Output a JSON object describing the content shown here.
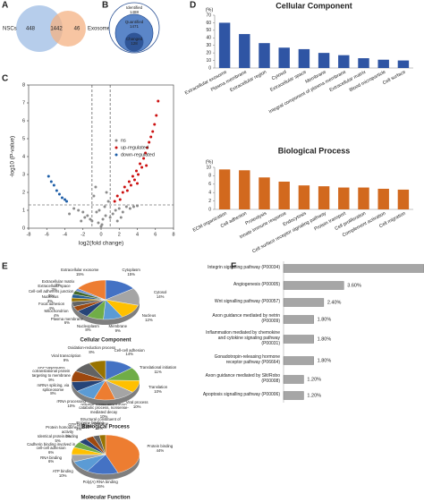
{
  "chart_data": [
    {
      "type": "venn",
      "panel": "A",
      "sets": [
        "NSCs",
        "Exosomes"
      ],
      "values": [
        448,
        1442,
        46
      ],
      "colors": [
        "#a9c4e8",
        "#f4b183"
      ]
    },
    {
      "type": "nested",
      "panel": "B",
      "categories": [
        "Identified",
        "Quantified",
        "Changed"
      ],
      "values": [
        1488,
        1471,
        128
      ],
      "colors": [
        "#ffffff",
        "#5b86c8",
        "#2f5597"
      ]
    },
    {
      "type": "scatter",
      "panel": "C",
      "x_label": "log2(fold change)",
      "y_label": "-log10 (P-value)",
      "xlim": [
        -8,
        8
      ],
      "xticks": [
        -8,
        -6,
        -4,
        -2,
        0,
        2,
        4,
        6,
        8
      ],
      "ylim": [
        0,
        8
      ],
      "yticks": [
        0,
        1,
        2,
        3,
        4,
        5,
        6,
        7,
        8
      ],
      "vlines": [
        -1,
        1
      ],
      "hline": 1.3,
      "series": [
        {
          "name": "ns",
          "color": "#8c8c8c",
          "x": [
            -3,
            -2.5,
            -2,
            -1.5,
            -1.2,
            -1,
            -0.8,
            -0.5,
            -0.3,
            0,
            0.2,
            0.4,
            0.6,
            0.8,
            1,
            1.3,
            1.6,
            2,
            2.4,
            2.8,
            3.2,
            -0.6,
            0.5,
            -1.8,
            1.8,
            0.1,
            -0.2,
            2.2,
            -2.2,
            3.6,
            -3.5,
            4
          ],
          "values": [
            1.1,
            1.0,
            0.9,
            0.7,
            0.5,
            0.4,
            1.8,
            0.9,
            0.3,
            0.1,
            0.5,
            1.2,
            2.0,
            1.5,
            0.6,
            0.8,
            1.0,
            1.1,
            0.9,
            1.2,
            1.1,
            2.3,
            0.7,
            0.6,
            0.4,
            0.2,
            1.0,
            0.6,
            0.4,
            1.2,
            0.8,
            1.25
          ]
        },
        {
          "name": "up-regulated",
          "color": "#cc1010",
          "x": [
            1.5,
            1.8,
            2.1,
            2.4,
            2.6,
            2.9,
            3.1,
            3.3,
            3.5,
            3.7,
            3.9,
            4.1,
            4.3,
            4.5,
            4.7,
            4.9,
            5.1,
            5.3,
            5.5,
            5.7,
            5.9,
            6.1,
            6.3,
            4.0,
            5.0
          ],
          "values": [
            1.5,
            1.8,
            1.6,
            2.0,
            2.3,
            2.1,
            2.6,
            2.4,
            2.9,
            2.7,
            3.2,
            3.0,
            3.6,
            3.4,
            3.9,
            4.2,
            4.5,
            4.8,
            5.1,
            5.4,
            5.8,
            6.3,
            7.1,
            2.5,
            3.5
          ]
        },
        {
          "name": "down-regulated",
          "color": "#1f5fa8",
          "x": [
            -5.8,
            -5.5,
            -5.2,
            -4.9,
            -4.6,
            -4.3,
            -4.0,
            -3.8
          ],
          "values": [
            2.9,
            2.6,
            2.4,
            2.1,
            1.9,
            1.7,
            1.6,
            1.5
          ]
        }
      ]
    },
    {
      "type": "bar",
      "panel": "D",
      "title": "Cellular Component",
      "y_label": "(%)",
      "color": "#2f55a4",
      "categories": [
        "Extracellular exosome",
        "Plasma membrane",
        "Extracellular region",
        "Cytosol",
        "Extracellular space",
        "Membrane",
        "Integral component of plasma membrane",
        "Extracellular matrix",
        "Blood microparticle",
        "Cell surface"
      ],
      "values": [
        60,
        45,
        33,
        27,
        25,
        20,
        17,
        13,
        11,
        10
      ],
      "ylim": [
        0,
        70
      ],
      "yticks": [
        0,
        10,
        20,
        30,
        40,
        50,
        60,
        70
      ]
    },
    {
      "type": "bar",
      "title": "Biological Process",
      "y_label": "(%)",
      "color": "#d2691e",
      "categories": [
        "ECM organization",
        "Cell adhesion",
        "Proteolysis",
        "Innate immune response",
        "Endocytosis",
        "Cell surface receptor signaling pathway",
        "Protein transport",
        "Cell proliferation",
        "Complement activation",
        "Cell migration"
      ],
      "values": [
        9.5,
        9.3,
        7.6,
        6.6,
        5.7,
        5.5,
        5.2,
        5.2,
        4.9,
        4.7
      ],
      "ylim": [
        0,
        10
      ],
      "yticks": [
        0,
        2,
        4,
        6,
        8,
        10
      ]
    },
    {
      "type": "pie",
      "panel": "E",
      "title": "Cellular Component",
      "categories": [
        "Cytoplasm",
        "Cytosol",
        "Nucleus",
        "Membrane",
        "Nucleoplasm",
        "Plasma membrane",
        "Mitochondrion",
        "Focal adhesion",
        "Nucleolus",
        "Cell-cell adherens junction",
        "Extracellular space",
        "Extracellular matrix",
        "Extracellular exosome"
      ],
      "values": [
        15,
        14,
        12,
        9,
        8,
        6,
        4,
        4,
        3,
        3,
        3,
        2,
        15
      ],
      "value_labels": [
        "15%",
        "14%",
        "12%",
        "9%",
        "8%",
        "6%",
        "4%",
        "4%",
        "3%",
        "3%",
        "3%",
        "2%",
        "15%"
      ],
      "colors": [
        "#4472c4",
        "#a5a5a5",
        "#ffc000",
        "#5b9bd5",
        "#70ad47",
        "#264478",
        "#9e480e",
        "#636363",
        "#997300",
        "#255e91",
        "#43682b",
        "#698ed0",
        "#ed7d31"
      ]
    },
    {
      "type": "pie",
      "title": "Biological Process",
      "categories": [
        "Cell-cell adhesion",
        "Translational initiation",
        "Translation",
        "Viral process",
        "Nuclear-transcribed mRNA catabolic process, nonsense-mediated decay",
        "rRNA processing",
        "mRNA splicing, via spliceosome",
        "SRP-dependent cotranslational protein targeting to membrane",
        "Viral transcription",
        "Oxidation-reduction process"
      ],
      "values": [
        14,
        11,
        10,
        10,
        10,
        10,
        8,
        9,
        9,
        8
      ],
      "value_labels": [
        "14%",
        "11%",
        "10%",
        "10%",
        "10%",
        "10%",
        "8%",
        "9%",
        "9%",
        "8%"
      ],
      "colors": [
        "#4472c4",
        "#70ad47",
        "#ffc000",
        "#a5a5a5",
        "#ed7d31",
        "#5b9bd5",
        "#264478",
        "#9e480e",
        "#636363",
        "#997300"
      ]
    },
    {
      "type": "pie",
      "title": "Molecular Function",
      "categories": [
        "Protein binding",
        "Poly(A) RNA binding",
        "ATP binding",
        "RNA binding",
        "Cadherin binding involved in cell-cell adhesion",
        "Identical protein binding",
        "Protein homodimerization activity",
        "GTP binding",
        "Enzyme binding",
        "Structural constituent of ribosome"
      ],
      "values": [
        44,
        15,
        10,
        6,
        6,
        5,
        4,
        4,
        3,
        3
      ],
      "value_labels": [
        "44%",
        "15%",
        "10%",
        "6%",
        "6%",
        "5%",
        "4%",
        "4%",
        "3%",
        "3%"
      ],
      "colors": [
        "#ed7d31",
        "#4472c4",
        "#5b9bd5",
        "#a5a5a5",
        "#ffc000",
        "#70ad47",
        "#264478",
        "#9e480e",
        "#636363",
        "#997300"
      ]
    },
    {
      "type": "barh",
      "panel": "F",
      "color": "#a6a6a6",
      "categories": [
        "Integrin signalling pathway (P00034)",
        "Angiogenesis (P00005)",
        "Wnt signalling pathway (P00057)",
        "Axon guidance mediated by netrin (P00009)",
        "Inflammation mediated by chemokine and cytokine signaling pathway (P00031)",
        "Gonadotropin-releasing hormone receptor pathway (P06664)",
        "Axon guidance mediated by Slit/Robo (P00008)",
        "Apoptosis signalling pathway (P00006)"
      ],
      "values": [
        8.4,
        3.6,
        2.4,
        1.8,
        1.8,
        1.8,
        1.2,
        1.2
      ],
      "value_labels": [
        null,
        "3.60%",
        "2.40%",
        "1.80%",
        "1.80%",
        "1.80%",
        "1.20%",
        "1.20%"
      ]
    }
  ]
}
